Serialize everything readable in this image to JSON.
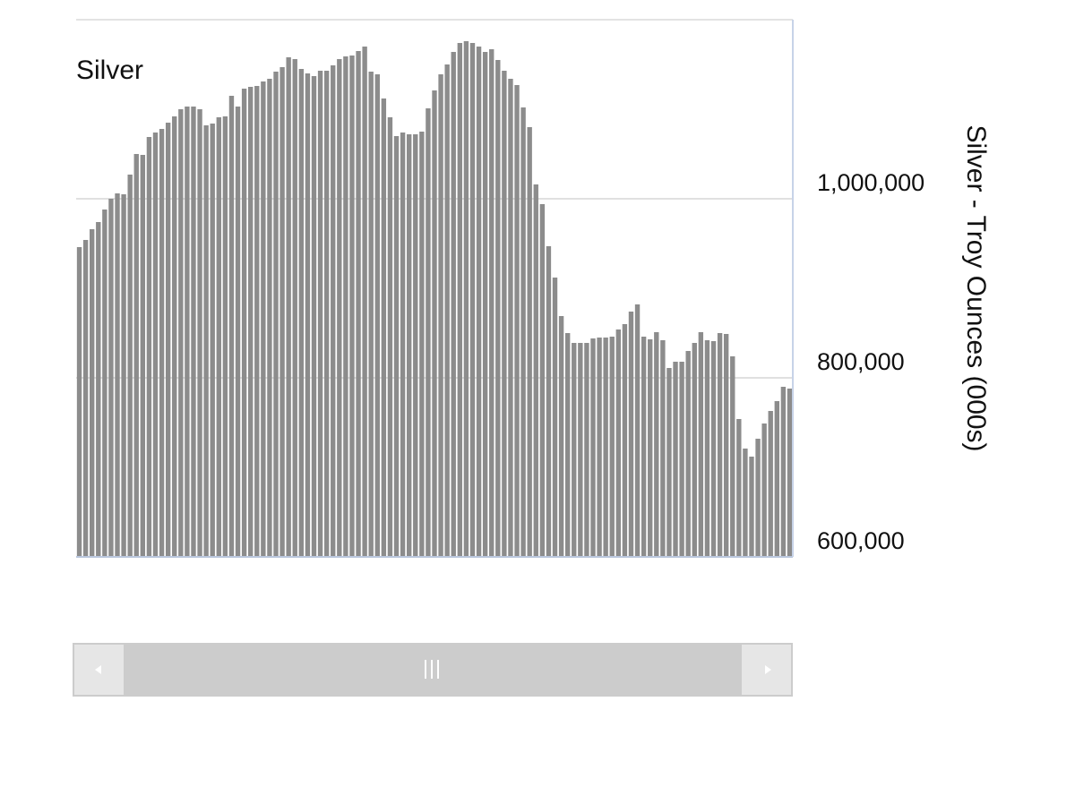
{
  "chart_data": {
    "type": "bar",
    "title": "Silver",
    "y_label": "Silver - Troy Ounces (000s)",
    "color": "#8c8c8c",
    "grid": true,
    "ylim": [
      600000,
      1200000
    ],
    "yticks": [
      {
        "value": 600000,
        "label": "600,000"
      },
      {
        "value": 800000,
        "label": "800,000"
      },
      {
        "value": 1000000,
        "label": "1,000,000"
      }
    ],
    "values": [
      946000,
      954000,
      966000,
      974000,
      988000,
      1000000,
      1006000,
      1005000,
      1027000,
      1050000,
      1049000,
      1069000,
      1074000,
      1078000,
      1085000,
      1092000,
      1100000,
      1103000,
      1103000,
      1100000,
      1082000,
      1084000,
      1091000,
      1092000,
      1115000,
      1103000,
      1123000,
      1125000,
      1126000,
      1131000,
      1134000,
      1142000,
      1147000,
      1158000,
      1156000,
      1145000,
      1140000,
      1137000,
      1143000,
      1143000,
      1149000,
      1156000,
      1159000,
      1160000,
      1165000,
      1170000,
      1142000,
      1139000,
      1112000,
      1091000,
      1070000,
      1074000,
      1072000,
      1072000,
      1075000,
      1101000,
      1121000,
      1139000,
      1150000,
      1164000,
      1174000,
      1176000,
      1174000,
      1170000,
      1164000,
      1167000,
      1155000,
      1143000,
      1134000,
      1127000,
      1102000,
      1080000,
      1016000,
      994000,
      947000,
      912000,
      869000,
      850000,
      839000,
      839000,
      839000,
      844000,
      845000,
      845000,
      846000,
      854000,
      860000,
      874000,
      882000,
      846000,
      843000,
      851000,
      842000,
      811000,
      818000,
      818000,
      830000,
      839000,
      851000,
      842000,
      841000,
      850000,
      849000,
      824000,
      754000,
      721000,
      712000,
      732000,
      749000,
      763000,
      774000,
      790000,
      788000
    ]
  }
}
